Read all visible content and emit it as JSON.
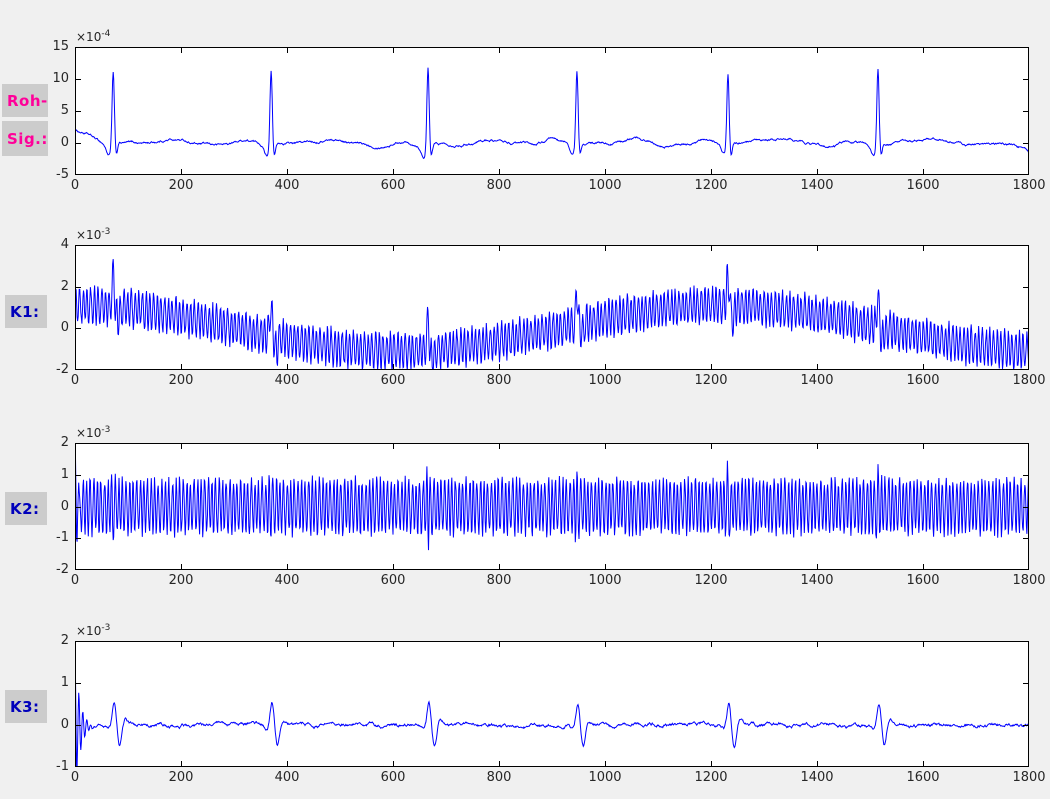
{
  "figure": {
    "type": "matlab-signal-figure",
    "background": "#f0f0f0",
    "label_box_color": "#cccccc",
    "axis_color": "#000000",
    "tick_label_color": "#262626",
    "labels": [
      {
        "text": "Roh-",
        "color": "#ff0099"
      },
      {
        "text": "Sig.:",
        "color": "#ff0099"
      },
      {
        "text": "K1:",
        "color": "#0000bb"
      },
      {
        "text": "K2:",
        "color": "#0000bb"
      },
      {
        "text": "K3:",
        "color": "#0000bb"
      }
    ]
  },
  "chart_data": [
    {
      "id": "roh",
      "type": "line",
      "label": "Roh-Sig.:",
      "line_color": "#0000ff",
      "grid": false,
      "x": {
        "min": 0,
        "max": 1800,
        "ticks": [
          0,
          200,
          400,
          600,
          800,
          1000,
          1200,
          1400,
          1600,
          1800
        ]
      },
      "y": {
        "min": -5,
        "max": 15,
        "ticks": [
          15,
          10,
          5,
          0,
          -5
        ],
        "exponent": "×10^-4"
      },
      "description": "Raw ECG signal (units 1e-4): six QRS complexes over flat noisy baseline, initial offset ~1.9 decaying, small P/T-wave bumps ~0.6, end dips to ~-1.6",
      "beats": {
        "positions": [
          72,
          370,
          666,
          947,
          1232,
          1515
        ],
        "r_amplitudes": [
          11.5,
          12.3,
          12.6,
          11.6,
          11.2,
          12.2
        ]
      },
      "gen": {
        "start_transient": 1.9,
        "end_dip": -1.7,
        "baseline_noise": 0.2,
        "p_amp": 0.55,
        "q_amp": -1.75,
        "s_amp": -1.8,
        "t_amp": 0.7
      }
    },
    {
      "id": "k1",
      "type": "line",
      "label": "K1:",
      "line_color": "#0000ff",
      "grid": false,
      "x": {
        "min": 0,
        "max": 1800,
        "ticks": [
          0,
          200,
          400,
          600,
          800,
          1000,
          1200,
          1400,
          1600,
          1800
        ]
      },
      "y": {
        "min": -2,
        "max": 4,
        "ticks": [
          4,
          2,
          0,
          -2
        ],
        "exponent": "×10^-3"
      },
      "description": "Dense carrier oscillation (~0.9 amplitude) riding on slow sinusoidal mean (+1.1 at x=0, -1.1 near x=600, +1.1 near x=1200); upward spikes at heartbeat positions, max ~3.0 at x=1232",
      "beats": {
        "positions": [
          72,
          370,
          666,
          947,
          1232,
          1515
        ]
      },
      "gen": {
        "carrier_freq": 0.9,
        "carrier_amp": 0.85,
        "mean_amp": 1.1,
        "mean_period": 1220,
        "spike_amp": 1.45,
        "spike_neg": -0.55
      }
    },
    {
      "id": "k2",
      "type": "line",
      "label": "K2:",
      "line_color": "#0000ff",
      "grid": false,
      "x": {
        "min": 0,
        "max": 1800,
        "ticks": [
          0,
          200,
          400,
          600,
          800,
          1000,
          1200,
          1400,
          1600,
          1800
        ]
      },
      "y": {
        "min": -2,
        "max": 2,
        "ticks": [
          2,
          1,
          0,
          -1,
          -2
        ],
        "exponent": "×10^-3"
      },
      "description": "Stationary dense oscillation centered at 0, band ~±0.85, initial spike to ~1.8 at x=0, envelope widens to ~±1.35 at heartbeat positions",
      "beats": {
        "positions": [
          72,
          370,
          666,
          947,
          1232,
          1515
        ]
      },
      "gen": {
        "carrier_freq": 0.93,
        "carrier_amp": 0.85,
        "beat_gain": 0.5,
        "start_transient": 1.9
      }
    },
    {
      "id": "k3",
      "type": "line",
      "label": "K3:",
      "line_color": "#0000ff",
      "grid": false,
      "x": {
        "min": 0,
        "max": 1800,
        "ticks": [
          0,
          200,
          400,
          600,
          800,
          1000,
          1200,
          1400,
          1600,
          1800
        ]
      },
      "y": {
        "min": -1,
        "max": 2,
        "ticks": [
          2,
          1,
          0,
          -1
        ],
        "exponent": "×10^-3"
      },
      "description": "Near-flat noisy baseline (~±0.04) with decaying ringing transient from 1.85 at x=0 and biphasic wavelets (+0.52 / -0.55) at heartbeat positions",
      "beats": {
        "positions": [
          72,
          370,
          666,
          947,
          1232,
          1515
        ]
      },
      "gen": {
        "noise": 0.05,
        "start_transient": 1.85,
        "wavelet_pos": 0.52,
        "wavelet_neg": -0.55
      }
    }
  ]
}
